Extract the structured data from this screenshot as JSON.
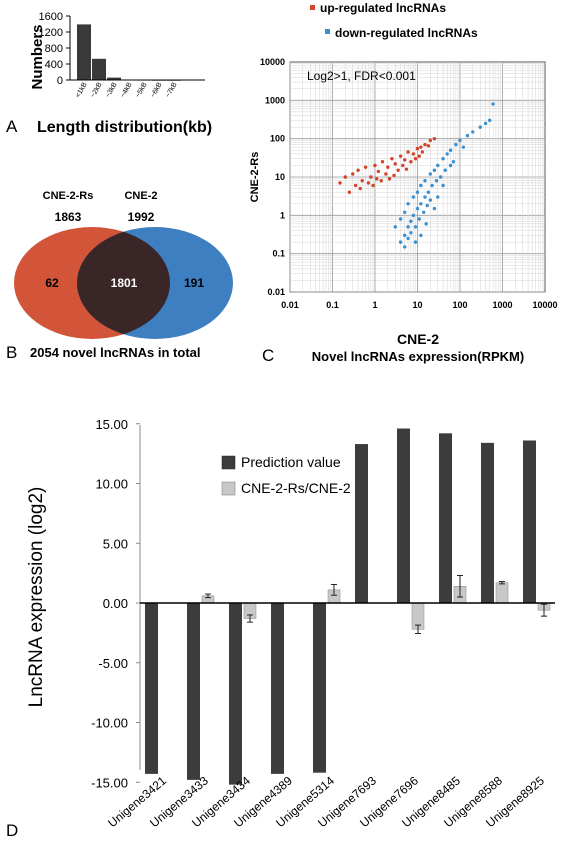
{
  "chart_data": [
    {
      "panel": "A",
      "type": "bar",
      "title": "Length distribution(kb)",
      "ylabel": "Numbers",
      "categories": [
        "<1kB",
        "~2kB",
        "~3kB",
        "~4kB",
        "~5kB",
        "~6kB",
        "~7kB"
      ],
      "values": [
        1390,
        530,
        60,
        12,
        6,
        3,
        2
      ],
      "ylim": [
        0,
        1600
      ],
      "yticks": [
        "0",
        "400",
        "800",
        "1200",
        "1600"
      ],
      "bar_color": "#3a3a3a"
    },
    {
      "panel": "B",
      "type": "venn",
      "caption": "2054 novel lncRNAs in total",
      "sets": [
        {
          "name": "CNE-2-Rs",
          "total": "1863",
          "color": "#d2553a"
        },
        {
          "name": "CNE-2",
          "total": "1992",
          "color": "#3d7fc1"
        }
      ],
      "only_left": "62",
      "overlap": "1801",
      "only_right": "191",
      "overlap_color": "#3a2626"
    },
    {
      "panel": "C",
      "type": "scatter",
      "annotation": "Log2>1, FDR<0.001",
      "xlabel": "CNE-2",
      "ylabel": "CNE-2-Rs",
      "caption": "Novel lncRNAs expression(RPKM)",
      "xscale": "log",
      "yscale": "log",
      "xlim": [
        0.01,
        10000
      ],
      "ylim": [
        0.01,
        10000
      ],
      "ticks": [
        "0.01",
        "0.1",
        "1",
        "10",
        "100",
        "1000",
        "10000"
      ],
      "grid": true,
      "legend_position": "top",
      "series": [
        {
          "name": "up-regulated lncRNAs",
          "color": "#d1452a",
          "points": [
            [
              0.2,
              10
            ],
            [
              0.3,
              12
            ],
            [
              0.4,
              15
            ],
            [
              0.5,
              8
            ],
            [
              0.6,
              18
            ],
            [
              0.8,
              10
            ],
            [
              1,
              20
            ],
            [
              1.2,
              14
            ],
            [
              1.5,
              25
            ],
            [
              2,
              18
            ],
            [
              2.5,
              30
            ],
            [
              3,
              22
            ],
            [
              4,
              35
            ],
            [
              5,
              28
            ],
            [
              6,
              45
            ],
            [
              8,
              40
            ],
            [
              10,
              55
            ],
            [
              12,
              60
            ],
            [
              15,
              70
            ],
            [
              20,
              90
            ],
            [
              0.35,
              6
            ],
            [
              0.7,
              7
            ],
            [
              1.1,
              9
            ],
            [
              1.8,
              12
            ],
            [
              2.2,
              9
            ],
            [
              3.5,
              15
            ],
            [
              4.5,
              20
            ],
            [
              7,
              25
            ],
            [
              9,
              30
            ],
            [
              0.25,
              4
            ],
            [
              0.45,
              5
            ],
            [
              0.9,
              6
            ],
            [
              1.4,
              8
            ],
            [
              2.8,
              11
            ],
            [
              5.5,
              16
            ],
            [
              11,
              35
            ],
            [
              13,
              45
            ],
            [
              18,
              65
            ],
            [
              25,
              100
            ],
            [
              0.15,
              7
            ]
          ]
        },
        {
          "name": "down-regulated lncRNAs",
          "color": "#3a8fcf",
          "points": [
            [
              3,
              0.5
            ],
            [
              4,
              0.8
            ],
            [
              5,
              1.2
            ],
            [
              6,
              2
            ],
            [
              8,
              3
            ],
            [
              10,
              4
            ],
            [
              12,
              6
            ],
            [
              15,
              8
            ],
            [
              20,
              12
            ],
            [
              25,
              15
            ],
            [
              30,
              20
            ],
            [
              40,
              30
            ],
            [
              50,
              40
            ],
            [
              60,
              50
            ],
            [
              80,
              70
            ],
            [
              100,
              90
            ],
            [
              150,
              120
            ],
            [
              200,
              150
            ],
            [
              300,
              200
            ],
            [
              400,
              250
            ],
            [
              500,
              300
            ],
            [
              5,
              0.3
            ],
            [
              6,
              0.5
            ],
            [
              7,
              0.7
            ],
            [
              8,
              1
            ],
            [
              10,
              1.5
            ],
            [
              12,
              2
            ],
            [
              15,
              3
            ],
            [
              18,
              4
            ],
            [
              22,
              6
            ],
            [
              28,
              8
            ],
            [
              35,
              10
            ],
            [
              45,
              15
            ],
            [
              60,
              20
            ],
            [
              4,
              0.2
            ],
            [
              5,
              0.15
            ],
            [
              6,
              0.25
            ],
            [
              7,
              0.35
            ],
            [
              9,
              0.5
            ],
            [
              11,
              0.8
            ],
            [
              14,
              1.2
            ],
            [
              17,
              1.8
            ],
            [
              20,
              2.5
            ],
            [
              9,
              0.2
            ],
            [
              12,
              0.3
            ],
            [
              16,
              0.6
            ],
            [
              25,
              1.5
            ],
            [
              30,
              3
            ],
            [
              40,
              6
            ],
            [
              70,
              25
            ],
            [
              120,
              60
            ],
            [
              600,
              800
            ]
          ]
        }
      ]
    },
    {
      "panel": "D",
      "type": "bar",
      "ylabel": "LncRNA expression (log2)",
      "categories": [
        "Unigene3421",
        "Unigene3433",
        "Unigene3434",
        "Unigene4389",
        "Unigene5314",
        "Unigene7693",
        "Unigene7696",
        "Unigene8485",
        "Unigene8588",
        "Unigene8925"
      ],
      "ylim": [
        -15,
        15
      ],
      "yticks": [
        "-15.00",
        "-10.00",
        "-5.00",
        "0.00",
        "5.00",
        "10.00",
        "15.00"
      ],
      "legend_position": "top-left",
      "series": [
        {
          "name": "Prediction value",
          "color": "#3c3c3c",
          "values": [
            -14.3,
            -14.8,
            -15.2,
            -14.3,
            -14.2,
            13.3,
            14.6,
            14.2,
            13.4,
            13.6
          ]
        },
        {
          "name": "CNE-2-Rs/CNE-2",
          "color": "#c8c8c8",
          "values": [
            0.0,
            0.6,
            -1.3,
            0.0,
            1.1,
            0.0,
            -2.2,
            1.4,
            1.7,
            -0.6
          ],
          "errors": [
            0,
            0.15,
            0.3,
            0,
            0.45,
            0,
            0.35,
            0.9,
            0.1,
            0.5
          ]
        }
      ]
    }
  ],
  "panel_labels": {
    "a": "A",
    "b": "B",
    "c": "C",
    "d": "D"
  }
}
